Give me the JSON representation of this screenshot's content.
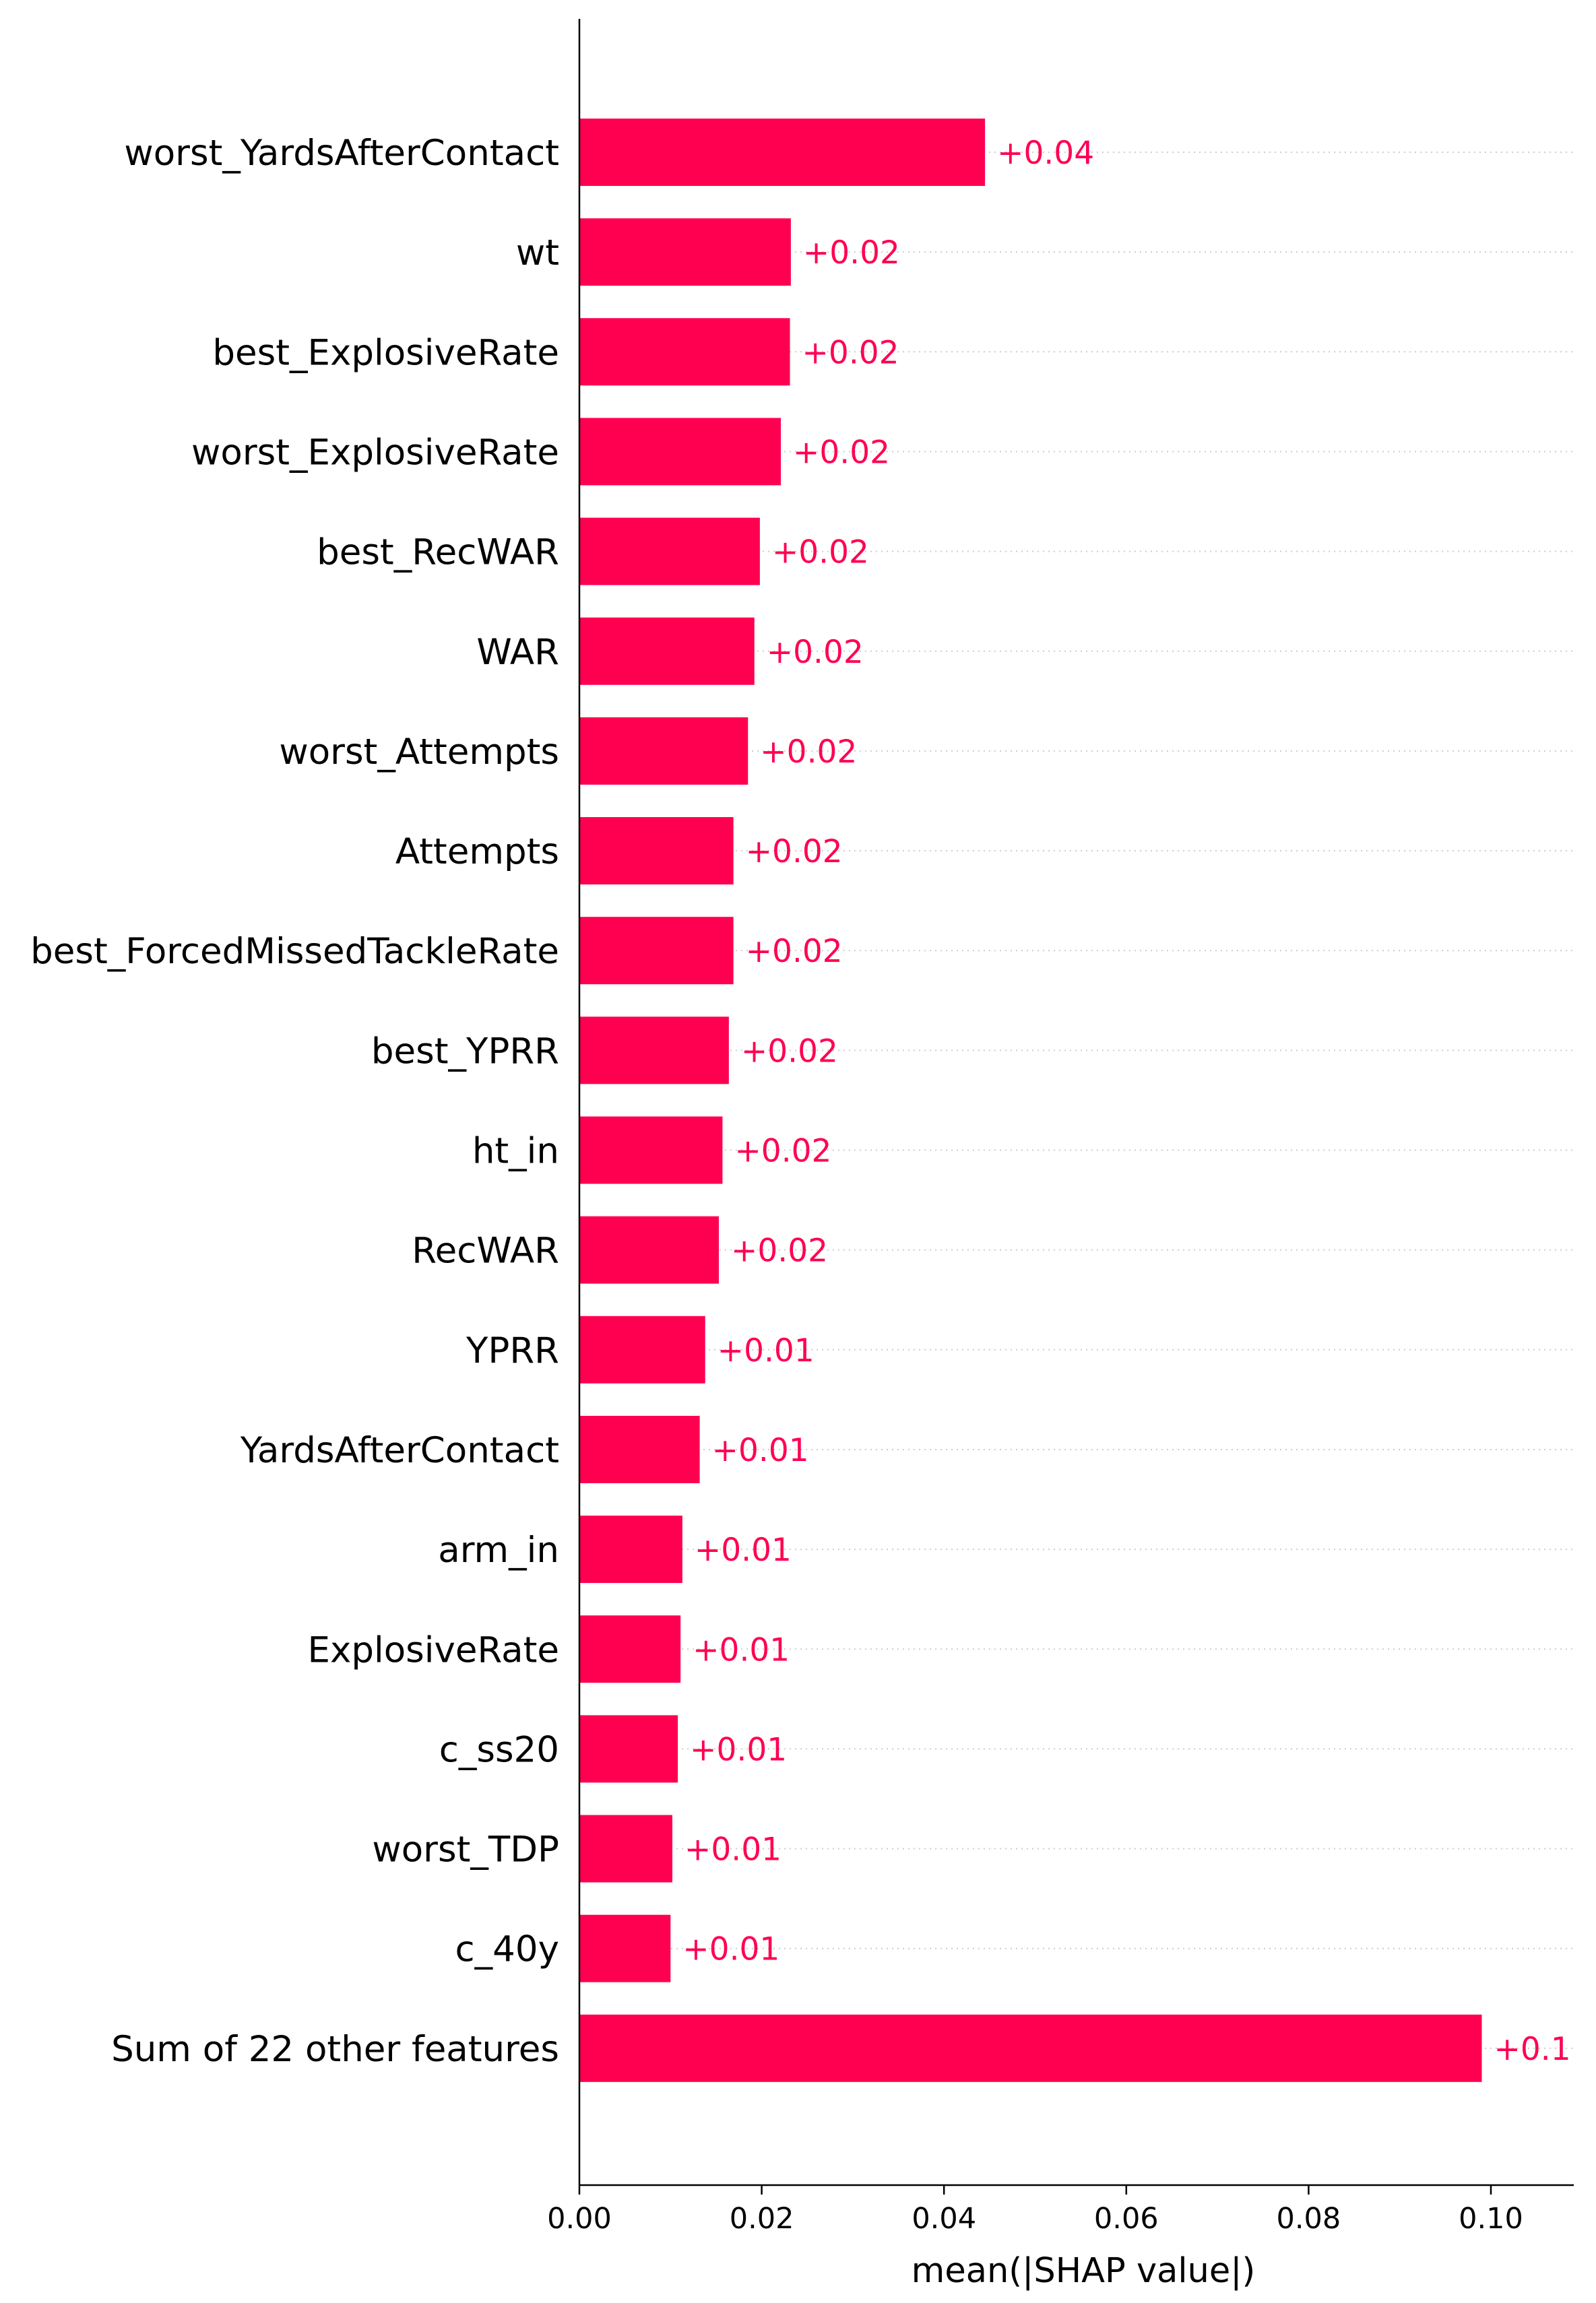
{
  "chart_data": {
    "type": "bar",
    "orientation": "horizontal",
    "categories": [
      "worst_YardsAfterContact",
      "wt",
      "best_ExplosiveRate",
      "worst_ExplosiveRate",
      "best_RecWAR",
      "WAR",
      "worst_Attempts",
      "Attempts",
      "best_ForcedMissedTackleRate",
      "best_YPRR",
      "ht_in",
      "RecWAR",
      "YPRR",
      "YardsAfterContact",
      "arm_in",
      "ExplosiveRate",
      "c_ss20",
      "worst_TDP",
      "c_40y",
      "Sum of 22 other features"
    ],
    "values": [
      0.0445,
      0.0232,
      0.0231,
      0.0221,
      0.0198,
      0.0192,
      0.0185,
      0.0169,
      0.0169,
      0.0164,
      0.0157,
      0.0153,
      0.0138,
      0.0132,
      0.0113,
      0.0111,
      0.0108,
      0.0102,
      0.01,
      0.099
    ],
    "value_labels": [
      "+0.04",
      "+0.02",
      "+0.02",
      "+0.02",
      "+0.02",
      "+0.02",
      "+0.02",
      "+0.02",
      "+0.02",
      "+0.02",
      "+0.02",
      "+0.02",
      "+0.01",
      "+0.01",
      "+0.01",
      "+0.01",
      "+0.01",
      "+0.01",
      "+0.01",
      "+0.1"
    ],
    "xlabel": "mean(|SHAP value|)",
    "ylabel": "",
    "xlim": [
      0,
      0.109
    ],
    "xticks": [
      "0.00",
      "0.02",
      "0.04",
      "0.06",
      "0.08",
      "0.10"
    ],
    "xtick_values": [
      0.0,
      0.02,
      0.04,
      0.06,
      0.08,
      0.1
    ],
    "grid": "dotted guide lines from bar labels",
    "legend": "none",
    "colors": {
      "bar": "#ff0051",
      "value_label": "#ff0051",
      "axis": "#000000",
      "guide": "#cccccc"
    }
  }
}
